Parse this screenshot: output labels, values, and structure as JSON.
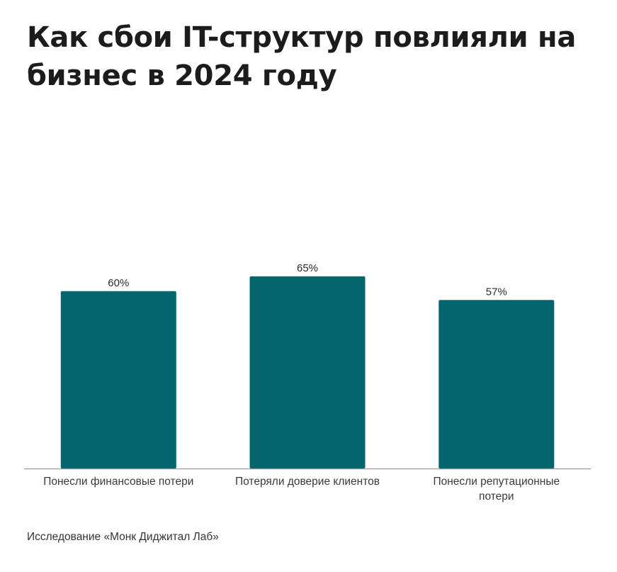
{
  "chart_data": {
    "type": "bar",
    "title": "Как сбои IT-структур повлияли на бизнес в 2024 году",
    "categories": [
      "Понесли финансовые потери",
      "Потеряли доверие клиентов",
      "Понесли репутационные потери"
    ],
    "category_lines": [
      [
        "Понесли финансовые потери"
      ],
      [
        "Потеряли доверие клиентов"
      ],
      [
        "Понесли репутационные",
        "потери"
      ]
    ],
    "values": [
      60,
      65,
      57
    ],
    "value_labels": [
      "60%",
      "65%",
      "57%"
    ],
    "unit": "%",
    "ylim": [
      0,
      100
    ],
    "grid": false,
    "legend": "none",
    "bar_color": "#03666f",
    "axis_color": "#9a9a9a"
  },
  "footer": {
    "source": "Исследование «Монк Диджитал Лаб»"
  }
}
